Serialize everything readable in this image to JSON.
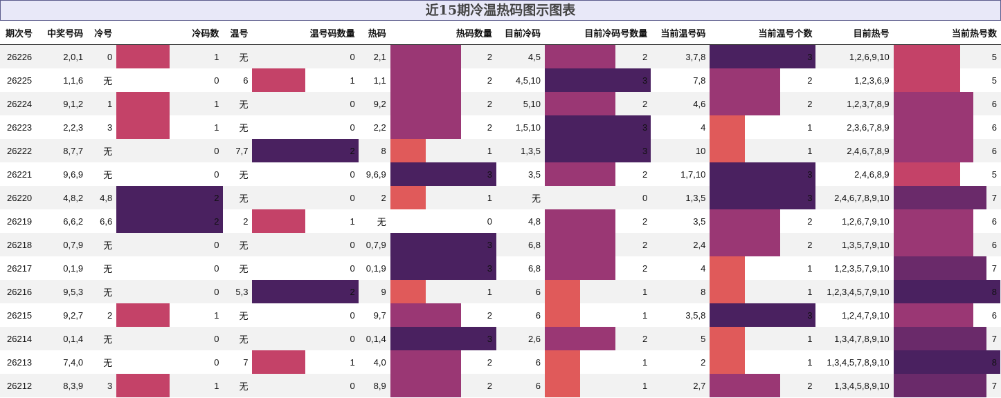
{
  "title": "近15期冷温热码图示图表",
  "headers": [
    "期次号",
    "中奖号码",
    "冷号",
    "冷码数",
    "温号",
    "温号码数量",
    "热码",
    "热码数量",
    "目前冷码",
    "目前冷码号数量",
    "当前温号码",
    "当前温号个数",
    "目前热号",
    "当前热号数"
  ],
  "colors": {
    "c1": "#e05a5a",
    "c2": "#c44268",
    "c3": "#9a3774",
    "c4": "#4a2160"
  },
  "rows": [
    {
      "issue": "26226",
      "draw": "2,0,1",
      "cold": "0",
      "cold_n": "1",
      "warm": "无",
      "warm_n": "0",
      "hot": "2,1",
      "hot_n": "2",
      "cur_cold": "4,5",
      "cur_cold_n": "2",
      "cur_warm": "3,7,8",
      "cur_warm_n": "3",
      "cur_hot": "1,2,6,9,10",
      "cur_hot_n": "5"
    },
    {
      "issue": "26225",
      "draw": "1,1,6",
      "cold": "无",
      "cold_n": "0",
      "warm": "6",
      "warm_n": "1",
      "hot": "1,1",
      "hot_n": "2",
      "cur_cold": "4,5,10",
      "cur_cold_n": "3",
      "cur_warm": "7,8",
      "cur_warm_n": "2",
      "cur_hot": "1,2,3,6,9",
      "cur_hot_n": "5"
    },
    {
      "issue": "26224",
      "draw": "9,1,2",
      "cold": "1",
      "cold_n": "1",
      "warm": "无",
      "warm_n": "0",
      "hot": "9,2",
      "hot_n": "2",
      "cur_cold": "5,10",
      "cur_cold_n": "2",
      "cur_warm": "4,6",
      "cur_warm_n": "2",
      "cur_hot": "1,2,3,7,8,9",
      "cur_hot_n": "6"
    },
    {
      "issue": "26223",
      "draw": "2,2,3",
      "cold": "3",
      "cold_n": "1",
      "warm": "无",
      "warm_n": "0",
      "hot": "2,2",
      "hot_n": "2",
      "cur_cold": "1,5,10",
      "cur_cold_n": "3",
      "cur_warm": "4",
      "cur_warm_n": "1",
      "cur_hot": "2,3,6,7,8,9",
      "cur_hot_n": "6"
    },
    {
      "issue": "26222",
      "draw": "8,7,7",
      "cold": "无",
      "cold_n": "0",
      "warm": "7,7",
      "warm_n": "2",
      "hot": "8",
      "hot_n": "1",
      "cur_cold": "1,3,5",
      "cur_cold_n": "3",
      "cur_warm": "10",
      "cur_warm_n": "1",
      "cur_hot": "2,4,6,7,8,9",
      "cur_hot_n": "6"
    },
    {
      "issue": "26221",
      "draw": "9,6,9",
      "cold": "无",
      "cold_n": "0",
      "warm": "无",
      "warm_n": "0",
      "hot": "9,6,9",
      "hot_n": "3",
      "cur_cold": "3,5",
      "cur_cold_n": "2",
      "cur_warm": "1,7,10",
      "cur_warm_n": "3",
      "cur_hot": "2,4,6,8,9",
      "cur_hot_n": "5"
    },
    {
      "issue": "26220",
      "draw": "4,8,2",
      "cold": "4,8",
      "cold_n": "2",
      "warm": "无",
      "warm_n": "0",
      "hot": "2",
      "hot_n": "1",
      "cur_cold": "无",
      "cur_cold_n": "0",
      "cur_warm": "1,3,5",
      "cur_warm_n": "3",
      "cur_hot": "2,4,6,7,8,9,10",
      "cur_hot_n": "7"
    },
    {
      "issue": "26219",
      "draw": "6,6,2",
      "cold": "6,6",
      "cold_n": "2",
      "warm": "2",
      "warm_n": "1",
      "hot": "无",
      "hot_n": "0",
      "cur_cold": "4,8",
      "cur_cold_n": "2",
      "cur_warm": "3,5",
      "cur_warm_n": "2",
      "cur_hot": "1,2,6,7,9,10",
      "cur_hot_n": "6"
    },
    {
      "issue": "26218",
      "draw": "0,7,9",
      "cold": "无",
      "cold_n": "0",
      "warm": "无",
      "warm_n": "0",
      "hot": "0,7,9",
      "hot_n": "3",
      "cur_cold": "6,8",
      "cur_cold_n": "2",
      "cur_warm": "2,4",
      "cur_warm_n": "2",
      "cur_hot": "1,3,5,7,9,10",
      "cur_hot_n": "6"
    },
    {
      "issue": "26217",
      "draw": "0,1,9",
      "cold": "无",
      "cold_n": "0",
      "warm": "无",
      "warm_n": "0",
      "hot": "0,1,9",
      "hot_n": "3",
      "cur_cold": "6,8",
      "cur_cold_n": "2",
      "cur_warm": "4",
      "cur_warm_n": "1",
      "cur_hot": "1,2,3,5,7,9,10",
      "cur_hot_n": "7"
    },
    {
      "issue": "26216",
      "draw": "9,5,3",
      "cold": "无",
      "cold_n": "0",
      "warm": "5,3",
      "warm_n": "2",
      "hot": "9",
      "hot_n": "1",
      "cur_cold": "6",
      "cur_cold_n": "1",
      "cur_warm": "8",
      "cur_warm_n": "1",
      "cur_hot": "1,2,3,4,5,7,9,10",
      "cur_hot_n": "8"
    },
    {
      "issue": "26215",
      "draw": "9,2,7",
      "cold": "2",
      "cold_n": "1",
      "warm": "无",
      "warm_n": "0",
      "hot": "9,7",
      "hot_n": "2",
      "cur_cold": "6",
      "cur_cold_n": "1",
      "cur_warm": "3,5,8",
      "cur_warm_n": "3",
      "cur_hot": "1,2,4,7,9,10",
      "cur_hot_n": "6"
    },
    {
      "issue": "26214",
      "draw": "0,1,4",
      "cold": "无",
      "cold_n": "0",
      "warm": "无",
      "warm_n": "0",
      "hot": "0,1,4",
      "hot_n": "3",
      "cur_cold": "2,6",
      "cur_cold_n": "2",
      "cur_warm": "5",
      "cur_warm_n": "1",
      "cur_hot": "1,3,4,7,8,9,10",
      "cur_hot_n": "7"
    },
    {
      "issue": "26213",
      "draw": "7,4,0",
      "cold": "无",
      "cold_n": "0",
      "warm": "7",
      "warm_n": "1",
      "hot": "4,0",
      "hot_n": "2",
      "cur_cold": "6",
      "cur_cold_n": "1",
      "cur_warm": "2",
      "cur_warm_n": "1",
      "cur_hot": "1,3,4,5,7,8,9,10",
      "cur_hot_n": "8"
    },
    {
      "issue": "26212",
      "draw": "8,3,9",
      "cold": "3",
      "cold_n": "1",
      "warm": "无",
      "warm_n": "0",
      "hot": "8,9",
      "hot_n": "2",
      "cur_cold": "6",
      "cur_cold_n": "1",
      "cur_warm": "2,7",
      "cur_warm_n": "2",
      "cur_hot": "1,3,4,5,8,9,10",
      "cur_hot_n": "7"
    }
  ]
}
